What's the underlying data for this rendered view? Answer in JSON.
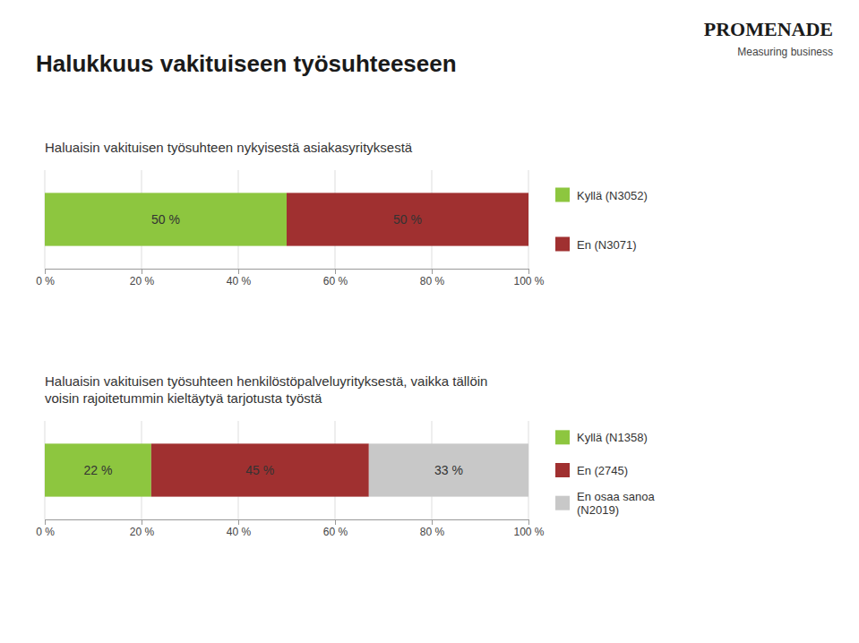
{
  "chart_data": [
    {
      "type": "bar",
      "orientation": "horizontal",
      "stacked": true,
      "title": "Halukkuus vakituiseen työsuhteeseen",
      "annotations": [
        "PROMENADE",
        "Measuring business"
      ],
      "subtitle": "Haluaisin vakituisen työsuhteen nykyisestä asiakasyrityksestä",
      "categories": [
        null
      ],
      "series": [
        {
          "name": "Kyllä (N3052)",
          "color": "#8dc63f",
          "values": [
            50
          ],
          "value_labels": [
            "50 %"
          ]
        },
        {
          "name": "En (N3071)",
          "color": "#a03030",
          "values": [
            50
          ],
          "value_labels": [
            "50 %"
          ]
        }
      ],
      "xlim": [
        0,
        100
      ],
      "xticks": [
        {
          "value": 0,
          "label": "0 %"
        },
        {
          "value": 20,
          "label": "20 %"
        },
        {
          "value": 40,
          "label": "40 %"
        },
        {
          "value": 60,
          "label": "60 %"
        },
        {
          "value": 80,
          "label": "80 %"
        },
        {
          "value": 100,
          "label": "100 %"
        }
      ],
      "grid": true,
      "data_labels": true,
      "tick_labels": "x",
      "legend": "right"
    },
    {
      "type": "bar",
      "orientation": "horizontal",
      "stacked": true,
      "subtitle": "Haluaisin vakituisen työsuhteen henkilöstöpalveluyrityksestä, vaikka tällöin\nvoisin rajoitetummin kieltäytyä tarjotusta työstä",
      "categories": [
        null
      ],
      "series": [
        {
          "name": "Kyllä (N1358)",
          "color": "#8dc63f",
          "values": [
            22
          ],
          "value_labels": [
            "22 %"
          ]
        },
        {
          "name": "En (2745)",
          "color": "#a03030",
          "values": [
            45
          ],
          "value_labels": [
            "45 %"
          ]
        },
        {
          "name": "En osaa sanoa\n(N2019)",
          "color": "#c8c8c8",
          "values": [
            33
          ],
          "value_labels": [
            "33 %"
          ]
        }
      ],
      "xlim": [
        0,
        100
      ],
      "xticks": [
        {
          "value": 0,
          "label": "0 %"
        },
        {
          "value": 20,
          "label": "20 %"
        },
        {
          "value": 40,
          "label": "40 %"
        },
        {
          "value": 60,
          "label": "60 %"
        },
        {
          "value": 80,
          "label": "80 %"
        },
        {
          "value": 100,
          "label": "100 %"
        }
      ],
      "grid": true,
      "data_labels": true,
      "tick_labels": "x",
      "legend": "right"
    }
  ]
}
